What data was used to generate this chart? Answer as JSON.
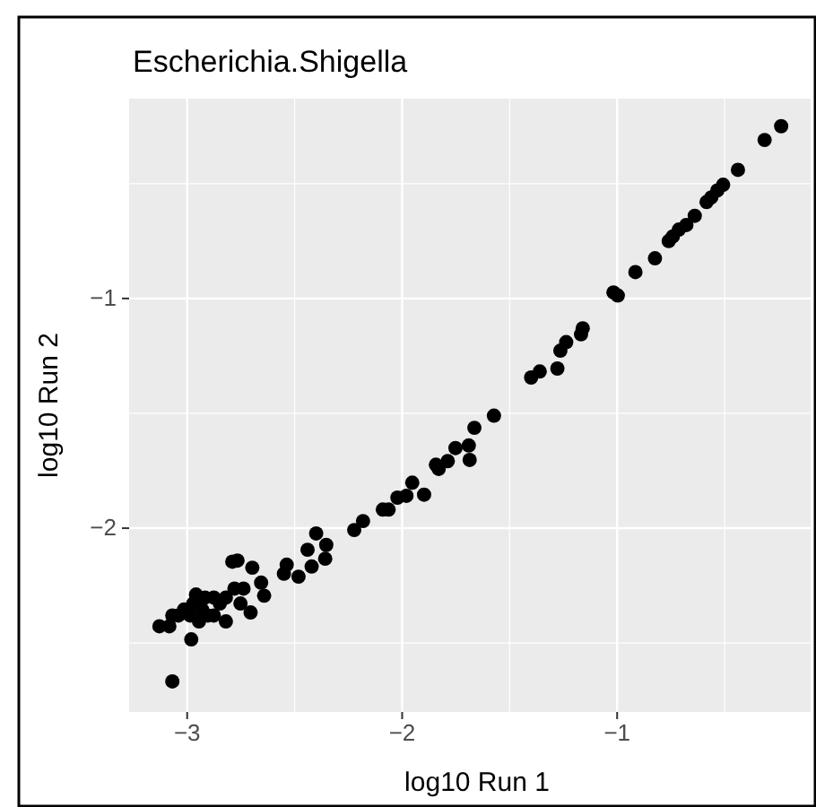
{
  "chart_data": {
    "type": "scatter",
    "title": "Escherichia.Shigella",
    "xlabel": "log10 Run 1",
    "ylabel": "log10 Run 2",
    "xlim": [
      -3.27,
      -0.1
    ],
    "ylim": [
      -2.8,
      -0.13
    ],
    "xticks": [
      {
        "value": -3,
        "label": "−3"
      },
      {
        "value": -2,
        "label": "−2"
      },
      {
        "value": -1,
        "label": "−1"
      }
    ],
    "yticks": [
      {
        "value": -2,
        "label": "−2"
      },
      {
        "value": -1,
        "label": "−1"
      }
    ],
    "grid": true,
    "marker": "circle",
    "series": [
      {
        "color": "#000000",
        "x": [
          -0.237,
          -0.314,
          -0.438,
          -0.507,
          -0.534,
          -0.562,
          -0.584,
          -0.639,
          -0.678,
          -0.713,
          -0.741,
          -0.76,
          -0.824,
          -0.915,
          -1.017,
          -0.997,
          -1.16,
          -1.168,
          -1.237,
          -1.264,
          -1.278,
          -1.36,
          -1.4,
          -1.573,
          -1.664,
          -1.69,
          -1.686,
          -1.752,
          -1.788,
          -1.83,
          -1.843,
          -1.898,
          -1.953,
          -1.98,
          -2.022,
          -2.063,
          -2.09,
          -2.182,
          -2.223,
          -2.353,
          -2.358,
          -2.4,
          -2.421,
          -2.44,
          -2.482,
          -2.537,
          -2.55,
          -2.642,
          -2.656,
          -2.697,
          -2.705,
          -2.738,
          -2.766,
          -2.79,
          -2.78,
          -2.82,
          -2.82,
          -2.848,
          -2.876,
          -2.904,
          -2.917,
          -2.931,
          -2.959,
          -2.972,
          -2.986,
          -3.014,
          -3.041,
          -3.069,
          -2.981,
          -3.083,
          -3.129,
          -3.069,
          -2.876,
          -2.945,
          -2.752
        ],
        "values": [
          -0.25,
          -0.31,
          -0.44,
          -0.505,
          -0.53,
          -0.56,
          -0.58,
          -0.64,
          -0.68,
          -0.7,
          -0.73,
          -0.75,
          -0.825,
          -0.885,
          -0.974,
          -0.987,
          -1.13,
          -1.156,
          -1.19,
          -1.227,
          -1.305,
          -1.318,
          -1.344,
          -1.51,
          -1.563,
          -1.64,
          -1.703,
          -1.651,
          -1.708,
          -1.742,
          -1.724,
          -1.854,
          -1.802,
          -1.859,
          -1.867,
          -1.919,
          -1.919,
          -1.969,
          -2.008,
          -2.073,
          -2.133,
          -2.023,
          -2.167,
          -2.094,
          -2.211,
          -2.159,
          -2.198,
          -2.294,
          -2.237,
          -2.172,
          -2.367,
          -2.263,
          -2.141,
          -2.146,
          -2.263,
          -2.302,
          -2.406,
          -2.328,
          -2.302,
          -2.38,
          -2.302,
          -2.354,
          -2.289,
          -2.328,
          -2.38,
          -2.354,
          -2.38,
          -2.38,
          -2.484,
          -2.427,
          -2.427,
          -2.667,
          -2.38,
          -2.406,
          -2.328
        ]
      }
    ]
  }
}
